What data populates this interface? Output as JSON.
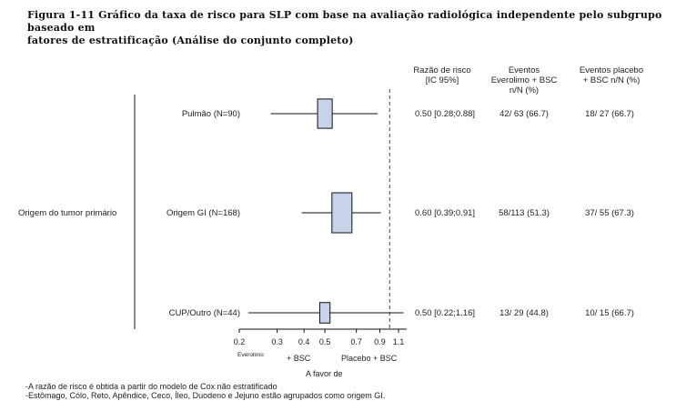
{
  "caption": {
    "line1": "Figura 1-11 Gráfico da taxa de risco para SLP com base na avaliação radiológica independente pelo subgrupo baseado em",
    "line2": "fatores de estratificação (Análise do conjunto completo)"
  },
  "columns": {
    "hr_line1": "Razão de risco",
    "hr_line2": "[IC 95%]",
    "everolimus_line1": "Eventos",
    "everolimus_line2": "Everolimo + BSC",
    "everolimus_line3": "n/N (%)",
    "placebo_line1": "Eventos placebo",
    "placebo_line2": "+ BSC n/N (%)"
  },
  "group_label": "Origem do tumor primário",
  "axis": {
    "ticks": [
      "0.2",
      "0.3",
      "0.4",
      "0.5",
      "0.7",
      "0.9",
      "1.1"
    ],
    "favor_left_line1": "Everolimo",
    "favor_left_line2": "+ BSC",
    "favor_right": "Placebo + BSC",
    "xlabel": "A favor de"
  },
  "notes": [
    "-A razão de risco é obtida a partir do modelo de Cox não estratificado",
    "-Estômago, Cólo, Reto, Apêndice, Ceco, Íleo, Duodeno e Jejuno estão agrupados como origem GI."
  ],
  "colors": {
    "box_fill": "#c8d3ea",
    "line": "#111111"
  },
  "chart_data": {
    "type": "forest",
    "scale": "log",
    "xlim": [
      0.2,
      1.2
    ],
    "reference_line": 1.0,
    "xticks": [
      0.2,
      0.3,
      0.4,
      0.5,
      0.7,
      0.9,
      1.1
    ],
    "rows": [
      {
        "label": "Pulmão (N=90)",
        "hr": 0.5,
        "ci_low": 0.28,
        "ci_high": 0.88,
        "hr_text": "0.50 [0.28;0.88]",
        "everolimus": "42/ 63 (66.7)",
        "placebo": "18/ 27 (66.7)",
        "n": 90
      },
      {
        "label": "Origem GI (N=168)",
        "hr": 0.6,
        "ci_low": 0.39,
        "ci_high": 0.91,
        "hr_text": "0.60 [0.39;0.91]",
        "everolimus": "58/113 (51.3)",
        "placebo": "37/ 55 (67.3)",
        "n": 168
      },
      {
        "label": "CUP/Outro (N=44)",
        "hr": 0.5,
        "ci_low": 0.22,
        "ci_high": 1.16,
        "hr_text": "0.50 [0.22;1.16]",
        "everolimus": "13/ 29 (44.8)",
        "placebo": "10/ 15 (66.7)",
        "n": 44
      }
    ]
  }
}
